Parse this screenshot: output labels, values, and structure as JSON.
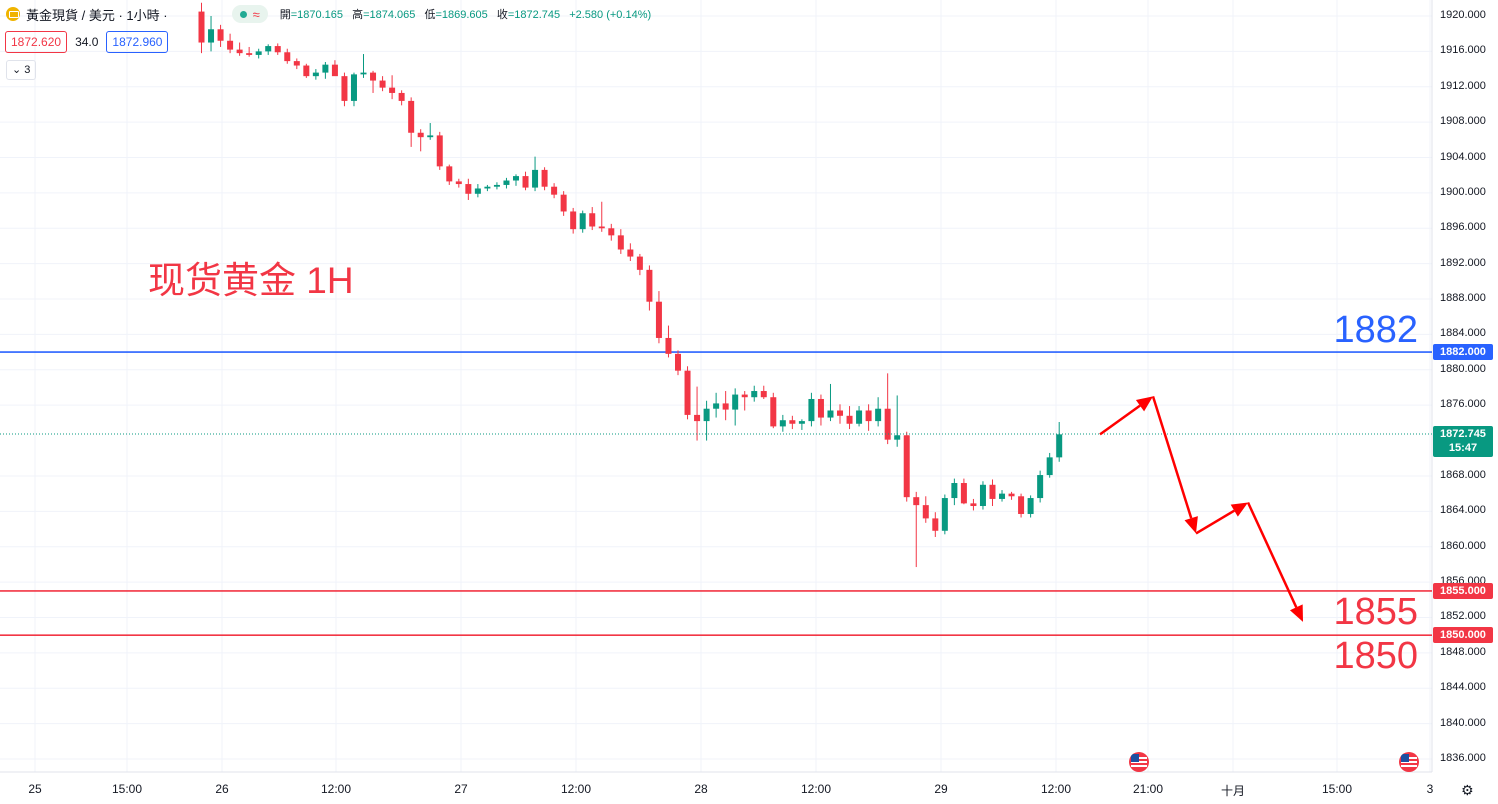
{
  "header": {
    "symbol": "黃金現貨 / 美元 · 1小時 ·",
    "wave_icon": "≈",
    "ohlc": [
      {
        "label": "開",
        "value": "=1870.165"
      },
      {
        "label": "高",
        "value": "=1874.065"
      },
      {
        "label": "低",
        "value": "=1869.605"
      },
      {
        "label": "收",
        "value": "=1872.745"
      }
    ],
    "change": "+2.580 (+0.14%)"
  },
  "trade": {
    "sell_price": "1872.620",
    "spread": "34.0",
    "buy_price": "1872.960"
  },
  "indicators": {
    "count_label": "3",
    "chevron_icon": "chevron-down-icon"
  },
  "annotation": {
    "text": "现货黄金 1H"
  },
  "colors": {
    "up": "#089981",
    "down": "#f23645",
    "resistance": "#2962ff",
    "support": "#f23645",
    "arrow": "#ff0000"
  },
  "levels": [
    {
      "value": 1882,
      "text": "1882",
      "tag": "1882.000",
      "color": "#2962ff"
    },
    {
      "value": 1855,
      "text": "1855",
      "tag": "1855.000",
      "color": "#f23645"
    },
    {
      "value": 1850,
      "text": "1850",
      "tag": "1850.000",
      "color": "#f23645"
    }
  ],
  "last_price": {
    "value": 1872.745,
    "text": "1872.745",
    "countdown": "15:47",
    "color": "#089981"
  },
  "chart_data": {
    "type": "candlestick",
    "ylim": [
      1834,
      1922
    ],
    "y_ticks": [
      1920,
      1916,
      1912,
      1908,
      1904,
      1900,
      1896,
      1892,
      1888,
      1884,
      1880,
      1876,
      1868,
      1864,
      1860,
      1856,
      1852,
      1848,
      1844,
      1840,
      1836
    ],
    "y_tick_labels": [
      "1920.000",
      "1916.000",
      "1912.000",
      "1908.000",
      "1904.000",
      "1900.000",
      "1896.000",
      "1892.000",
      "1888.000",
      "1884.000",
      "1880.000",
      "1876.000",
      "1868.000",
      "1864.000",
      "1860.000",
      "1856.000",
      "1852.000",
      "1848.000",
      "1844.000",
      "1840.000",
      "1836.000"
    ],
    "x_labels": [
      {
        "label": "25",
        "pos": 35
      },
      {
        "label": "15:00",
        "pos": 127
      },
      {
        "label": "26",
        "pos": 222
      },
      {
        "label": "12:00",
        "pos": 336
      },
      {
        "label": "27",
        "pos": 461
      },
      {
        "label": "12:00",
        "pos": 576
      },
      {
        "label": "28",
        "pos": 701
      },
      {
        "label": "12:00",
        "pos": 816
      },
      {
        "label": "29",
        "pos": 941
      },
      {
        "label": "12:00",
        "pos": 1056
      },
      {
        "label": "21:00",
        "pos": 1148
      },
      {
        "label": "十月",
        "pos": 1233
      },
      {
        "label": "15:00",
        "pos": 1337
      },
      {
        "label": "3",
        "pos": 1430
      }
    ],
    "candles": [
      [
        1920.5,
        1921.5,
        1915.8,
        1917.0
      ],
      [
        1917.0,
        1920.0,
        1916.0,
        1918.5
      ],
      [
        1918.5,
        1919.0,
        1916.5,
        1917.2
      ],
      [
        1917.2,
        1918.0,
        1915.8,
        1916.2
      ],
      [
        1916.2,
        1917.0,
        1915.5,
        1915.8
      ],
      [
        1915.8,
        1916.5,
        1915.4,
        1915.6
      ],
      [
        1915.6,
        1916.3,
        1915.2,
        1916.0
      ],
      [
        1916.0,
        1916.8,
        1915.6,
        1916.6
      ],
      [
        1916.6,
        1916.9,
        1915.6,
        1915.9
      ],
      [
        1915.9,
        1916.3,
        1914.6,
        1914.9
      ],
      [
        1914.9,
        1915.2,
        1914.0,
        1914.4
      ],
      [
        1914.4,
        1914.6,
        1913.0,
        1913.2
      ],
      [
        1913.2,
        1914.0,
        1912.8,
        1913.6
      ],
      [
        1913.6,
        1914.8,
        1912.9,
        1914.5
      ],
      [
        1914.5,
        1915.0,
        1913.8,
        1913.2
      ],
      [
        1913.2,
        1913.6,
        1909.8,
        1910.4
      ],
      [
        1910.4,
        1913.6,
        1909.8,
        1913.4
      ],
      [
        1913.4,
        1915.7,
        1913.0,
        1913.6
      ],
      [
        1913.6,
        1913.8,
        1911.3,
        1912.7
      ],
      [
        1912.7,
        1913.2,
        1911.5,
        1911.9
      ],
      [
        1911.9,
        1913.3,
        1910.6,
        1911.3
      ],
      [
        1911.3,
        1911.6,
        1909.9,
        1910.4
      ],
      [
        1910.4,
        1910.8,
        1905.2,
        1906.8
      ],
      [
        1906.8,
        1907.2,
        1904.7,
        1906.3
      ],
      [
        1906.3,
        1907.9,
        1906.0,
        1906.5
      ],
      [
        1906.5,
        1906.9,
        1902.6,
        1903.0
      ],
      [
        1903.0,
        1903.2,
        1900.9,
        1901.3
      ],
      [
        1901.3,
        1901.6,
        1900.6,
        1901.0
      ],
      [
        1901.0,
        1901.6,
        1899.2,
        1899.9
      ],
      [
        1899.9,
        1901.0,
        1899.5,
        1900.5
      ],
      [
        1900.5,
        1900.9,
        1900.2,
        1900.7
      ],
      [
        1900.7,
        1901.2,
        1900.4,
        1900.9
      ],
      [
        1900.9,
        1901.7,
        1900.5,
        1901.4
      ],
      [
        1901.4,
        1902.1,
        1900.8,
        1901.9
      ],
      [
        1901.9,
        1902.4,
        1900.3,
        1900.6
      ],
      [
        1900.6,
        1904.1,
        1900.2,
        1902.6
      ],
      [
        1902.6,
        1902.9,
        1900.3,
        1900.7
      ],
      [
        1900.7,
        1901.1,
        1899.4,
        1899.8
      ],
      [
        1899.8,
        1900.2,
        1897.4,
        1897.9
      ],
      [
        1897.9,
        1898.3,
        1895.4,
        1895.9
      ],
      [
        1895.9,
        1898.0,
        1895.5,
        1897.7
      ],
      [
        1897.7,
        1898.4,
        1895.8,
        1896.2
      ],
      [
        1896.2,
        1899.0,
        1895.6,
        1896.0
      ],
      [
        1896.0,
        1896.5,
        1894.6,
        1895.2
      ],
      [
        1895.2,
        1895.9,
        1893.1,
        1893.6
      ],
      [
        1893.6,
        1894.3,
        1892.3,
        1892.8
      ],
      [
        1892.8,
        1893.1,
        1890.7,
        1891.3
      ],
      [
        1891.3,
        1891.8,
        1886.7,
        1887.7
      ],
      [
        1887.7,
        1888.9,
        1883.0,
        1883.6
      ],
      [
        1883.6,
        1885.0,
        1881.4,
        1881.8
      ],
      [
        1881.8,
        1882.2,
        1879.4,
        1879.9
      ],
      [
        1879.9,
        1880.4,
        1874.4,
        1874.9
      ],
      [
        1874.9,
        1878.1,
        1872.0,
        1874.2
      ],
      [
        1874.2,
        1876.5,
        1872.0,
        1875.6
      ],
      [
        1875.6,
        1877.4,
        1874.6,
        1876.2
      ],
      [
        1876.2,
        1877.6,
        1874.3,
        1875.5
      ],
      [
        1875.5,
        1877.9,
        1873.7,
        1877.2
      ],
      [
        1877.2,
        1877.6,
        1875.4,
        1876.9
      ],
      [
        1876.9,
        1878.2,
        1876.4,
        1877.6
      ],
      [
        1877.6,
        1878.2,
        1876.7,
        1876.9
      ],
      [
        1876.9,
        1877.4,
        1873.4,
        1873.6
      ],
      [
        1873.6,
        1874.9,
        1873.0,
        1874.3
      ],
      [
        1874.3,
        1874.8,
        1873.3,
        1873.9
      ],
      [
        1873.9,
        1874.4,
        1873.2,
        1874.2
      ],
      [
        1874.2,
        1877.4,
        1873.6,
        1876.7
      ],
      [
        1876.7,
        1877.2,
        1873.7,
        1874.6
      ],
      [
        1874.6,
        1878.4,
        1874.2,
        1875.4
      ],
      [
        1875.4,
        1876.1,
        1873.9,
        1874.8
      ],
      [
        1874.8,
        1875.9,
        1873.3,
        1873.9
      ],
      [
        1873.9,
        1875.9,
        1873.6,
        1875.4
      ],
      [
        1875.4,
        1876.1,
        1873.1,
        1874.2
      ],
      [
        1874.2,
        1876.9,
        1873.6,
        1875.6
      ],
      [
        1875.6,
        1879.6,
        1871.6,
        1872.1
      ],
      [
        1872.1,
        1877.1,
        1871.3,
        1872.6
      ],
      [
        1872.6,
        1873.0,
        1865.1,
        1865.6
      ],
      [
        1865.6,
        1866.2,
        1857.7,
        1864.7
      ],
      [
        1864.7,
        1865.7,
        1862.7,
        1863.2
      ],
      [
        1863.2,
        1863.9,
        1861.1,
        1861.8
      ],
      [
        1861.8,
        1865.9,
        1861.4,
        1865.5
      ],
      [
        1865.5,
        1867.7,
        1864.7,
        1867.2
      ],
      [
        1867.2,
        1867.7,
        1864.8,
        1864.9
      ],
      [
        1864.9,
        1865.4,
        1864.1,
        1864.6
      ],
      [
        1864.6,
        1867.4,
        1864.2,
        1867.0
      ],
      [
        1867.0,
        1867.6,
        1864.6,
        1865.4
      ],
      [
        1865.4,
        1866.4,
        1865.1,
        1866.0
      ],
      [
        1866.0,
        1866.2,
        1865.3,
        1865.7
      ],
      [
        1865.7,
        1866.0,
        1863.3,
        1863.7
      ],
      [
        1863.7,
        1865.8,
        1863.3,
        1865.5
      ],
      [
        1865.5,
        1868.6,
        1865.0,
        1868.1
      ],
      [
        1868.1,
        1870.6,
        1867.8,
        1870.1
      ],
      [
        1870.1,
        1874.1,
        1869.6,
        1872.7
      ]
    ],
    "forecast_path": [
      [
        1100,
        1872.7
      ],
      [
        1153,
        1877.0
      ],
      [
        1196,
        1861.5
      ],
      [
        1248,
        1865.0
      ],
      [
        1303,
        1851.5
      ]
    ]
  }
}
